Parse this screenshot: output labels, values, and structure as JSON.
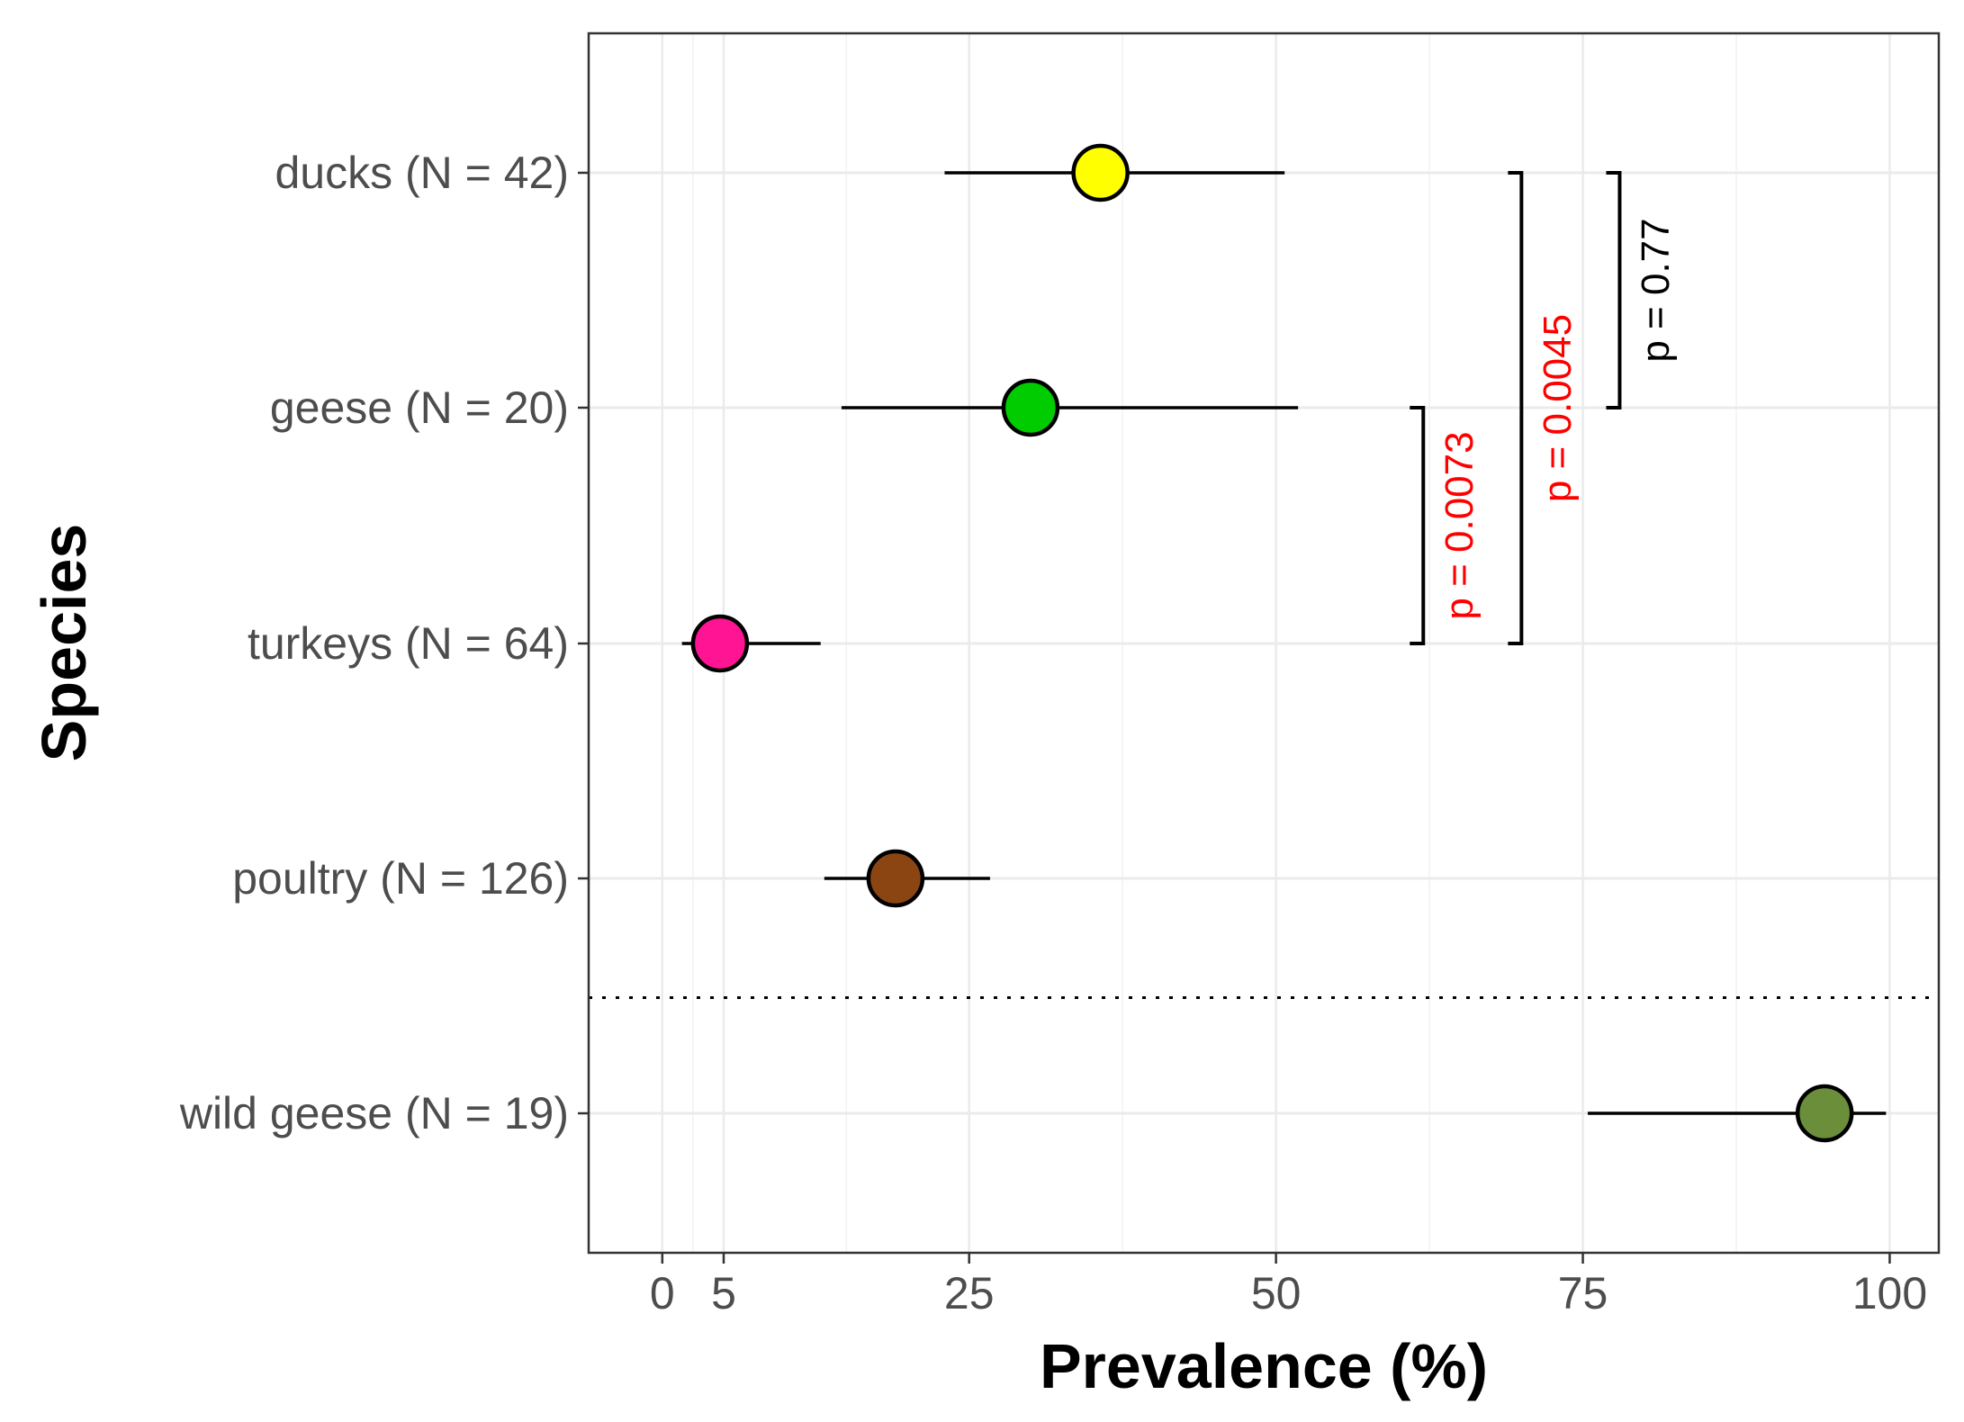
{
  "chart_data": {
    "type": "point-range",
    "title": "",
    "xlabel": "Prevalence (%)",
    "ylabel": "Species",
    "xlim": [
      -6,
      104
    ],
    "x_ticks": [
      0,
      5,
      25,
      50,
      75,
      100
    ],
    "x_tick_labels": [
      "0",
      "5",
      "25",
      "50",
      "75",
      "100"
    ],
    "minor_gridlines_x": [
      2.5,
      15,
      37.5,
      62.5,
      87.5
    ],
    "grid": true,
    "categories": [
      "ducks (N = 42)",
      "geese (N = 20)",
      "turkeys (N = 64)",
      "poultry (N = 126)",
      "wild geese (N = 19)"
    ],
    "points": [
      {
        "label": "ducks (N = 42)",
        "value": 35.7,
        "lower": 23.0,
        "upper": 50.7,
        "color": "#FFFF00"
      },
      {
        "label": "geese (N = 20)",
        "value": 30.0,
        "lower": 14.6,
        "upper": 51.8,
        "color": "#00CC00"
      },
      {
        "label": "turkeys (N = 64)",
        "value": 4.7,
        "lower": 1.6,
        "upper": 12.9,
        "color": "#FF1493"
      },
      {
        "label": "poultry (N = 126)",
        "value": 19.0,
        "lower": 13.2,
        "upper": 26.7,
        "color": "#8B4513"
      },
      {
        "label": "wild geese (N = 19)",
        "value": 94.7,
        "lower": 75.4,
        "upper": 99.7,
        "color": "#6B8E3A"
      }
    ],
    "separator": {
      "between": [
        "poultry (N = 126)",
        "wild geese (N = 19)"
      ],
      "style": "dotted"
    },
    "comparisons": [
      {
        "from": "geese (N = 20)",
        "to": "turkeys (N = 64)",
        "x": 62,
        "label": "p = 0.0073",
        "color": "#FF0000"
      },
      {
        "from": "ducks (N = 42)",
        "to": "turkeys (N = 64)",
        "x": 70,
        "label": "p = 0.0045",
        "color": "#FF0000"
      },
      {
        "from": "ducks (N = 42)",
        "to": "geese (N = 20)",
        "x": 78,
        "label": "p = 0.77",
        "color": "#000000"
      }
    ]
  }
}
